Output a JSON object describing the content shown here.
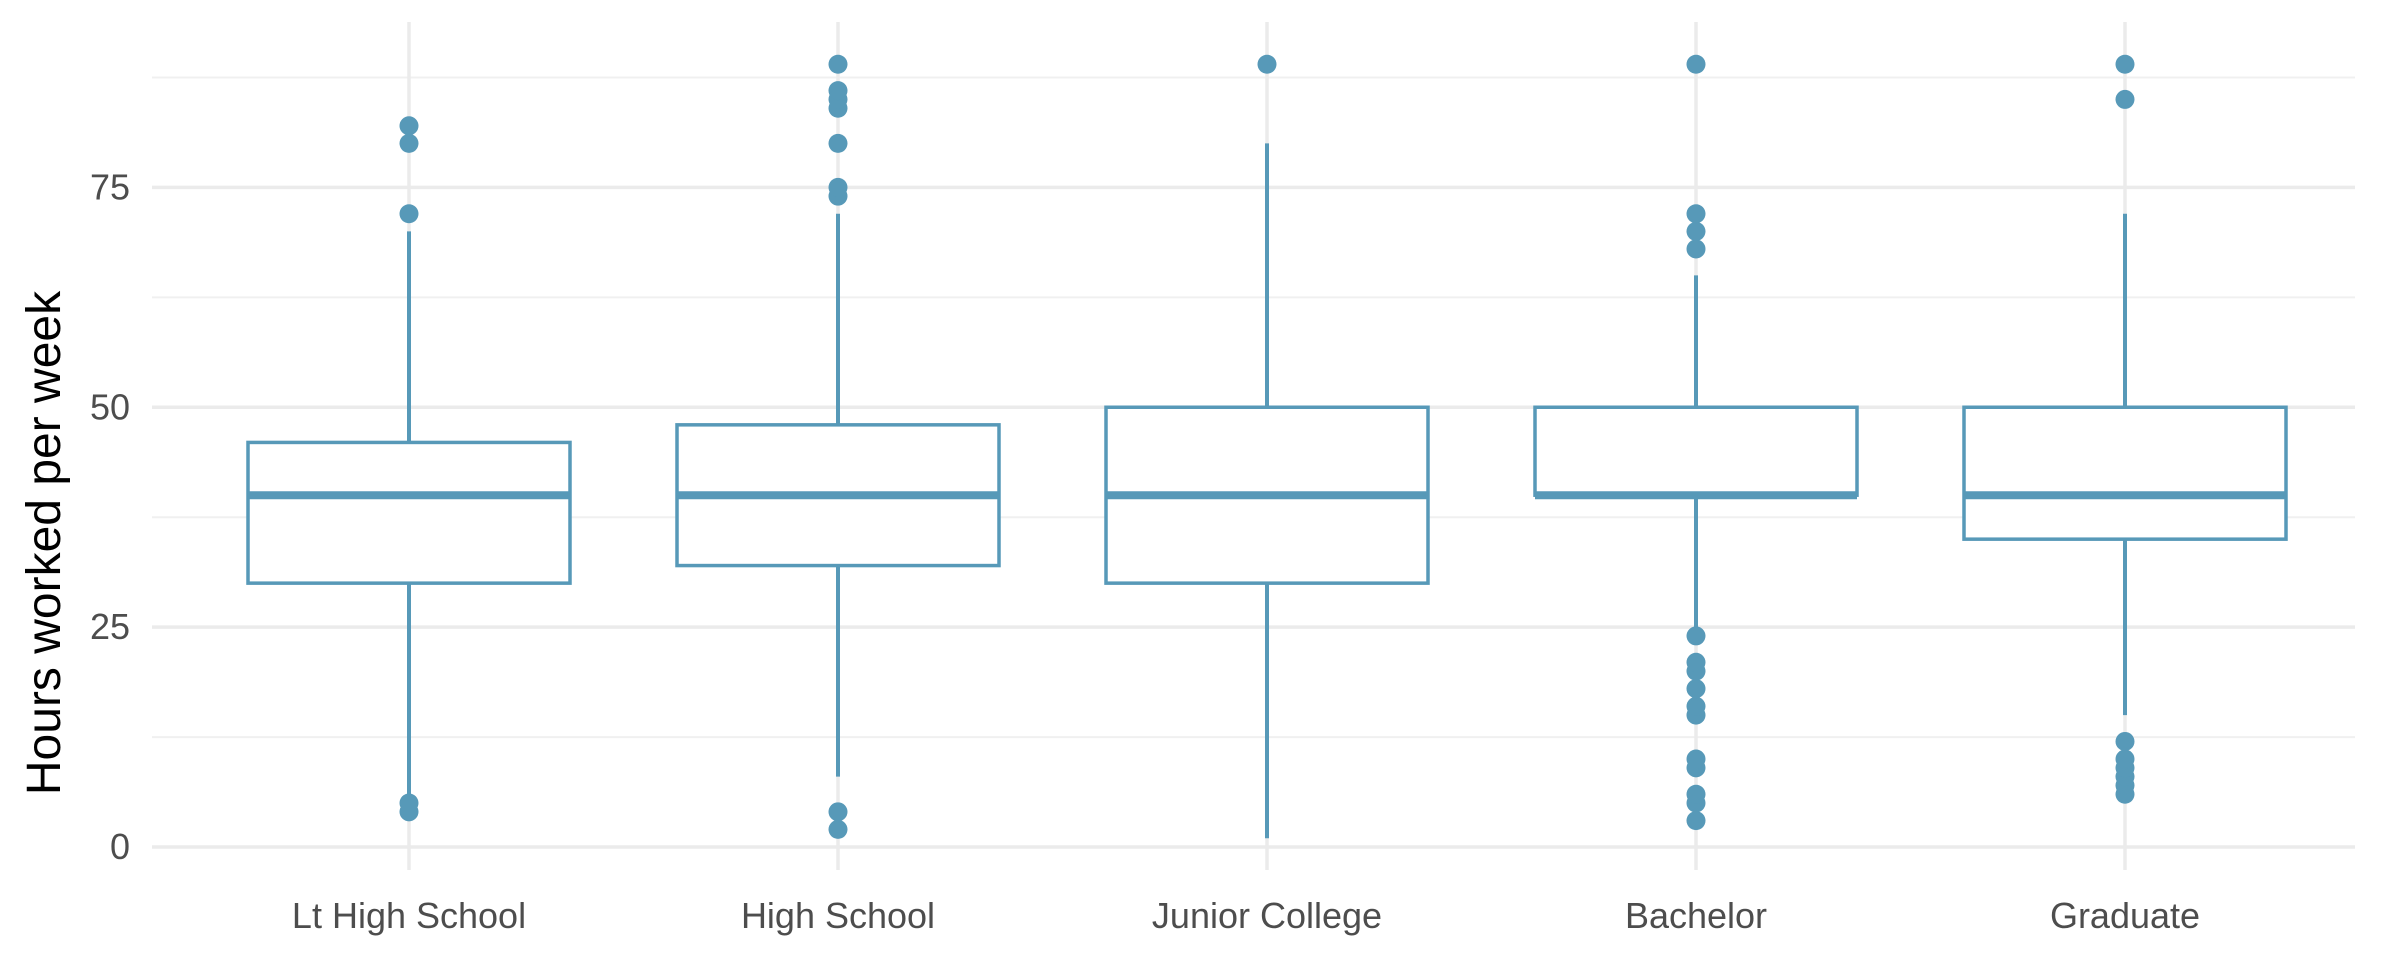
{
  "chart_data": {
    "type": "boxplot",
    "title": "",
    "xlabel": "",
    "ylabel": "Hours worked per week",
    "ylim": [
      0,
      92
    ],
    "y_ticks": [
      0,
      25,
      50,
      75
    ],
    "y_tick_labels": [
      "0",
      "25",
      "50",
      "75"
    ],
    "grid": true,
    "legend": "none",
    "color": "#5799b8",
    "categories": [
      "Lt High School",
      "High School",
      "Junior College",
      "Bachelor",
      "Graduate"
    ],
    "boxes": [
      {
        "category": "Lt High School",
        "whisker_low": 6,
        "q1": 30,
        "median": 40,
        "q3": 46,
        "whisker_high": 70,
        "outliers": [
          4,
          5,
          72,
          80,
          82
        ]
      },
      {
        "category": "High School",
        "whisker_low": 8,
        "q1": 32,
        "median": 40,
        "q3": 48,
        "whisker_high": 72,
        "outliers": [
          2,
          4,
          74,
          75,
          80,
          84,
          85,
          86,
          89
        ]
      },
      {
        "category": "Junior College",
        "whisker_low": 1,
        "q1": 30,
        "median": 40,
        "q3": 50,
        "whisker_high": 80,
        "outliers": [
          89
        ]
      },
      {
        "category": "Bachelor",
        "whisker_low": 25,
        "q1": 40,
        "median": 40,
        "q3": 50,
        "whisker_high": 65,
        "outliers": [
          3,
          5,
          6,
          9,
          10,
          15,
          16,
          18,
          20,
          21,
          24,
          68,
          70,
          72,
          89
        ]
      },
      {
        "category": "Graduate",
        "whisker_low": 15,
        "q1": 35,
        "median": 40,
        "q3": 50,
        "whisker_high": 72,
        "outliers": [
          6,
          7,
          8,
          9,
          10,
          12,
          85,
          89
        ]
      }
    ]
  }
}
